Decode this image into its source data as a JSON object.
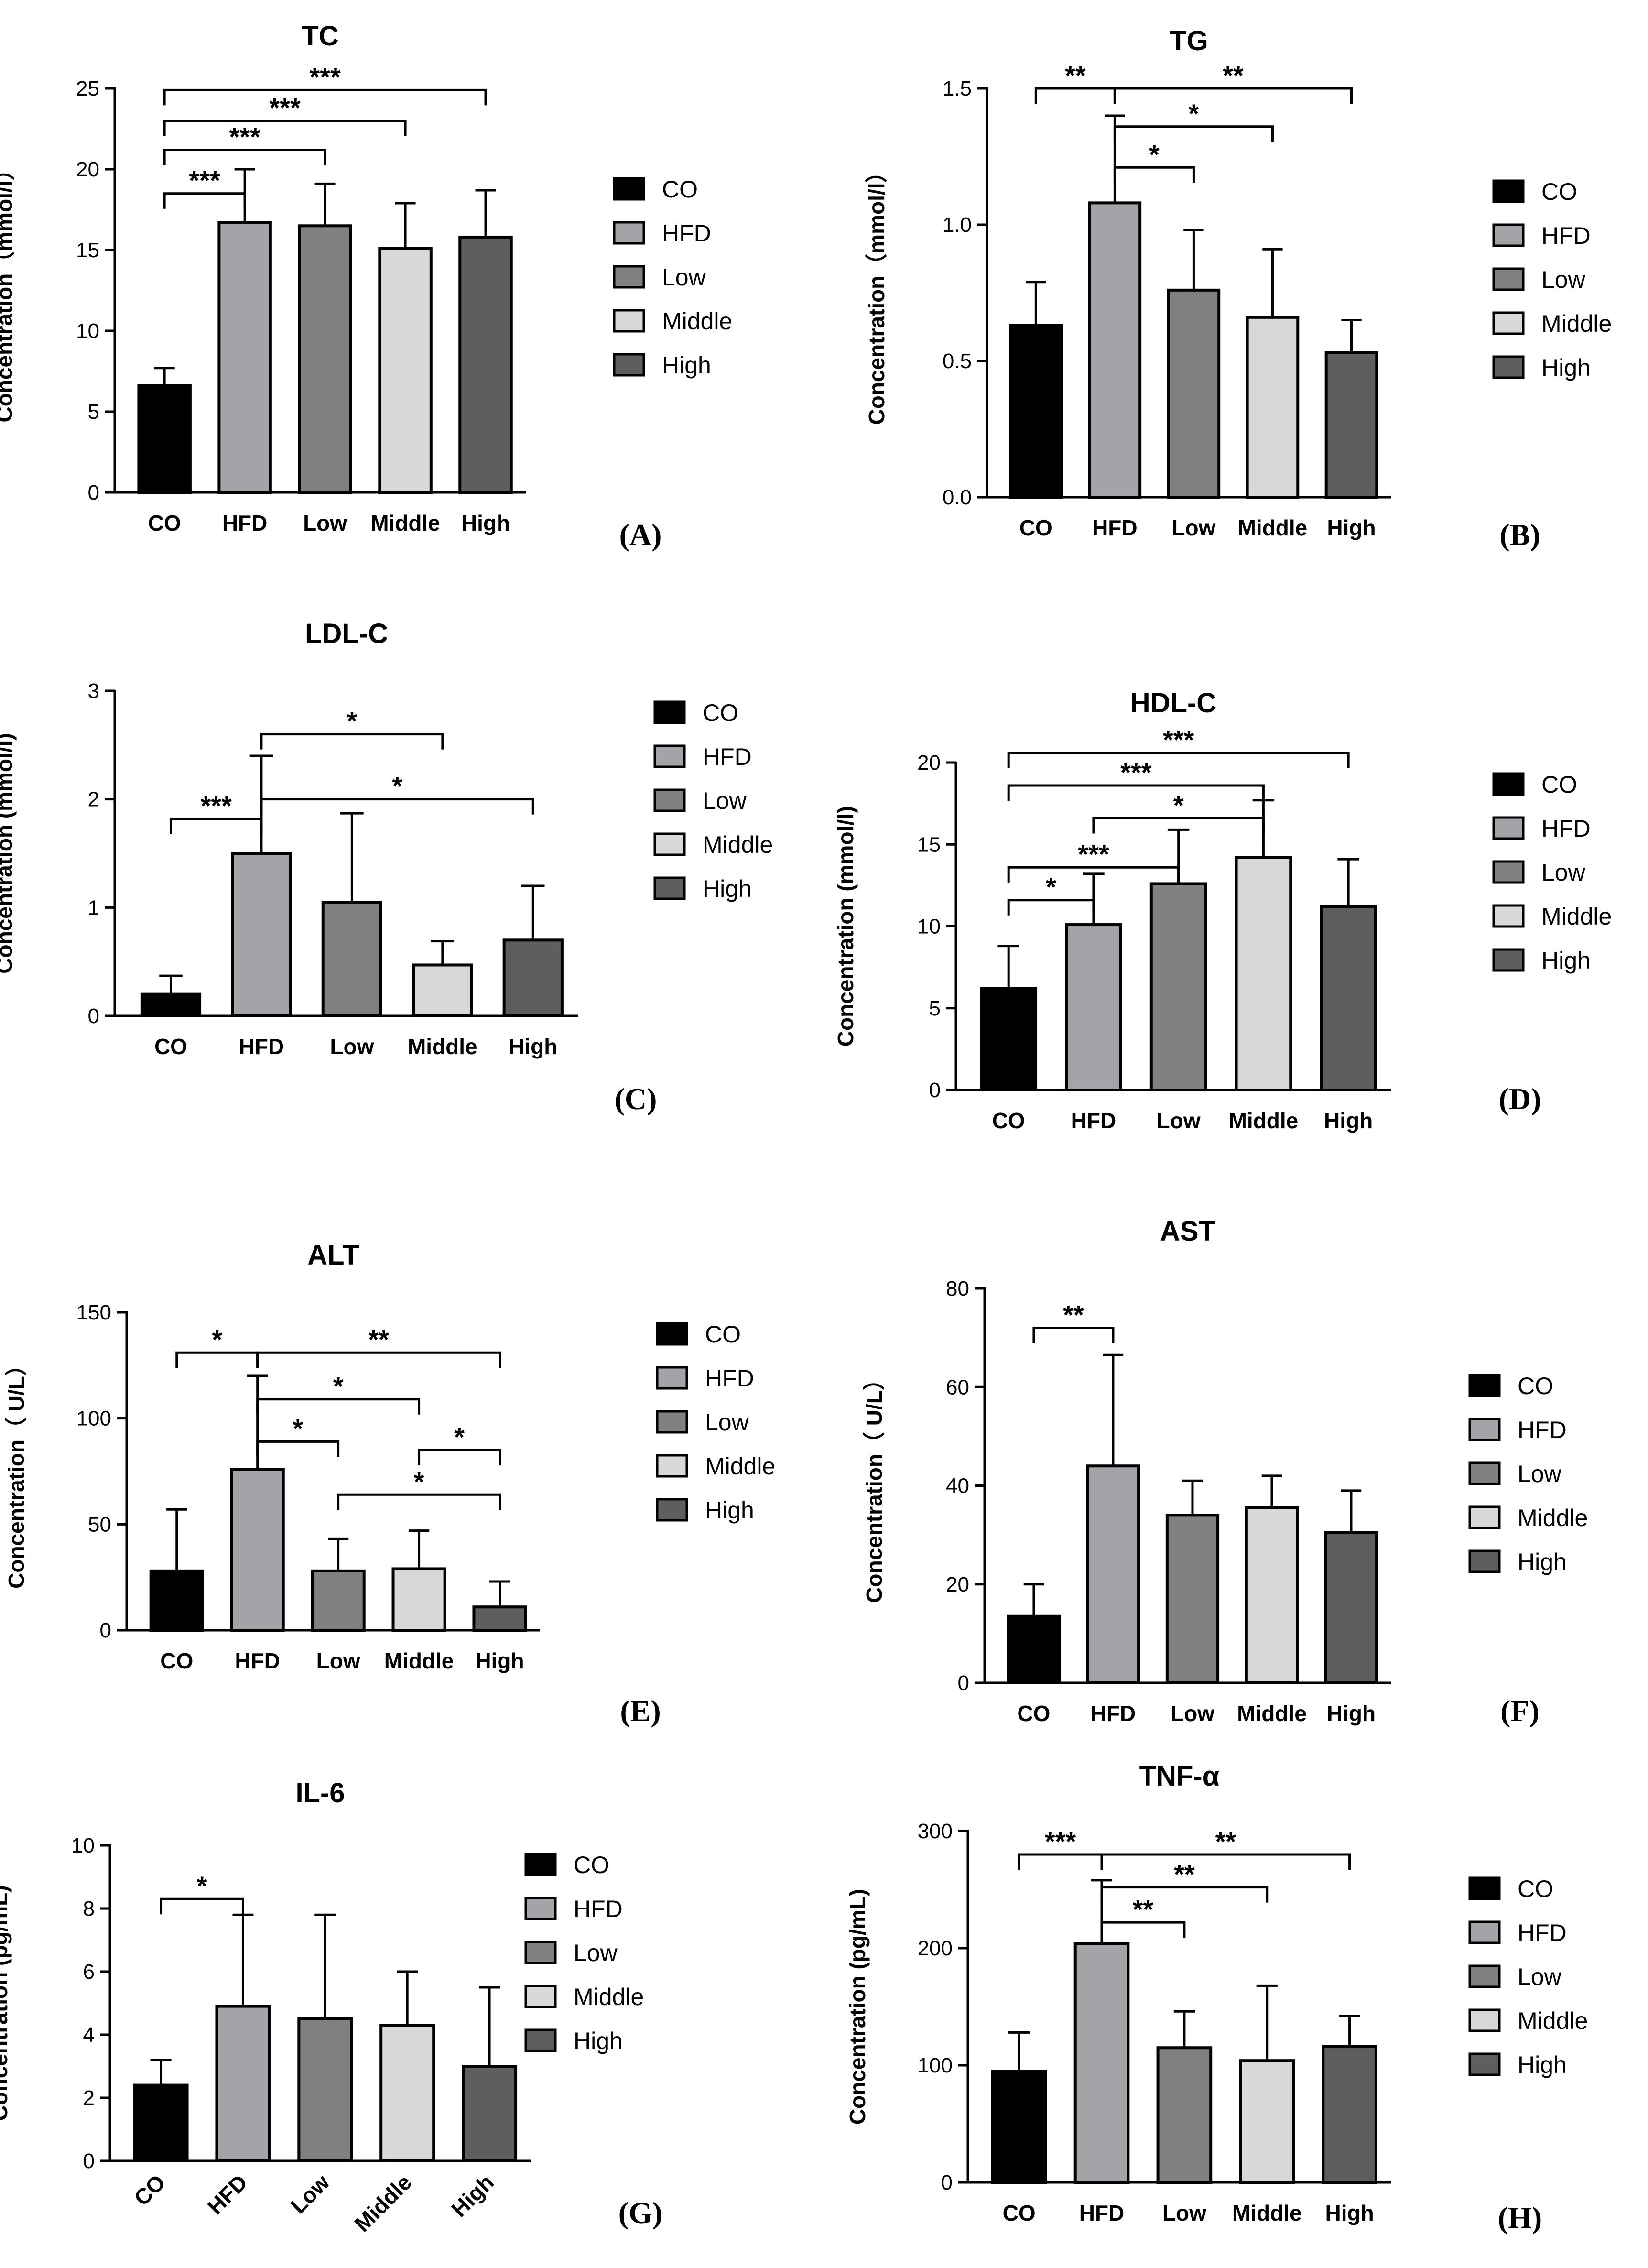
{
  "colors": {
    "CO": "#000000",
    "HFD": "#a3a3a8",
    "Low": "#808080",
    "Middle": "#d8d8d8",
    "High": "#5e5e5e"
  },
  "chart_data": [
    {
      "type": "bar",
      "panel_label": "(A)",
      "title": "TC",
      "ylabel": "Concentration（mmol/l）",
      "xlabel": "",
      "categories": [
        "CO",
        "HFD",
        "Low",
        "Middle",
        "High"
      ],
      "values": [
        6.6,
        16.7,
        16.5,
        15.1,
        15.8
      ],
      "errors": [
        1.1,
        3.3,
        2.6,
        2.8,
        2.9
      ],
      "ylim": [
        0,
        25
      ],
      "yticks": [
        0,
        5,
        10,
        15,
        20,
        25
      ],
      "tick_labels": [
        "0",
        "5",
        "10",
        "15",
        "20",
        "25"
      ],
      "rotate_categories": false,
      "legend": [
        "CO",
        "HFD",
        "Low",
        "Middle",
        "High"
      ],
      "significance": [
        {
          "from": 0,
          "to": 1,
          "label": "***",
          "y": 18.5
        },
        {
          "from": 0,
          "to": 2,
          "label": "***",
          "y": 21.2
        },
        {
          "from": 0,
          "to": 3,
          "label": "***",
          "y": 23.0
        },
        {
          "from": 0,
          "to": 4,
          "label": "***",
          "y": 24.9
        }
      ]
    },
    {
      "type": "bar",
      "panel_label": "(B)",
      "title": "TG",
      "ylabel": "Concentration（mmol/l）",
      "xlabel": "",
      "categories": [
        "CO",
        "HFD",
        "Low",
        "Middle",
        "High"
      ],
      "values": [
        0.63,
        1.08,
        0.76,
        0.66,
        0.53
      ],
      "errors": [
        0.16,
        0.32,
        0.22,
        0.25,
        0.12
      ],
      "ylim": [
        0,
        1.5
      ],
      "yticks": [
        0,
        0.5,
        1.0,
        1.5
      ],
      "tick_labels": [
        "0.0",
        "0.5",
        "1.0",
        "1.5"
      ],
      "rotate_categories": false,
      "legend": [
        "CO",
        "HFD",
        "Low",
        "Middle",
        "High"
      ],
      "significance": [
        {
          "from": 0,
          "to": 1,
          "label": "**",
          "y": 1.5
        },
        {
          "from": 1,
          "to": 2,
          "label": "*",
          "y": 1.21
        },
        {
          "from": 1,
          "to": 3,
          "label": "*",
          "y": 1.36
        },
        {
          "from": 1,
          "to": 4,
          "label": "**",
          "y": 1.5
        }
      ]
    },
    {
      "type": "bar",
      "panel_label": "(C)",
      "title": "LDL-C",
      "ylabel": "Concentration (mmol/l)",
      "xlabel": "",
      "categories": [
        "CO",
        "HFD",
        "Low",
        "Middle",
        "High"
      ],
      "values": [
        0.2,
        1.5,
        1.05,
        0.47,
        0.7
      ],
      "errors": [
        0.17,
        0.9,
        0.82,
        0.22,
        0.5
      ],
      "ylim": [
        0,
        3
      ],
      "yticks": [
        0,
        1,
        2,
        3
      ],
      "tick_labels": [
        "0",
        "1",
        "2",
        "3"
      ],
      "rotate_categories": false,
      "legend": [
        "CO",
        "HFD",
        "Low",
        "Middle",
        "High"
      ],
      "significance": [
        {
          "from": 0,
          "to": 1,
          "label": "***",
          "y": 1.82
        },
        {
          "from": 1,
          "to": 3,
          "label": "*",
          "y": 2.6
        },
        {
          "from": 1,
          "to": 4,
          "label": "*",
          "y": 2.0
        }
      ]
    },
    {
      "type": "bar",
      "panel_label": "(D)",
      "title": "HDL-C",
      "ylabel": "Concentration (mmol/l)",
      "xlabel": "",
      "categories": [
        "CO",
        "HFD",
        "Low",
        "Middle",
        "High"
      ],
      "values": [
        6.2,
        10.1,
        12.6,
        14.2,
        11.2
      ],
      "errors": [
        2.6,
        3.1,
        3.3,
        3.5,
        2.9
      ],
      "ylim": [
        0,
        20
      ],
      "yticks": [
        0,
        5,
        10,
        15,
        20
      ],
      "tick_labels": [
        "0",
        "5",
        "10",
        "15",
        "20"
      ],
      "rotate_categories": false,
      "legend": [
        "CO",
        "HFD",
        "Low",
        "Middle",
        "High"
      ],
      "significance": [
        {
          "from": 0,
          "to": 1,
          "label": "*",
          "y": 11.6
        },
        {
          "from": 0,
          "to": 2,
          "label": "***",
          "y": 13.6
        },
        {
          "from": 1,
          "to": 3,
          "label": "*",
          "y": 16.6
        },
        {
          "from": 0,
          "to": 3,
          "label": "***",
          "y": 18.6
        },
        {
          "from": 0,
          "to": 4,
          "label": "***",
          "y": 20.6
        }
      ]
    },
    {
      "type": "bar",
      "panel_label": "(E)",
      "title": "ALT",
      "ylabel": "Concentration（ U/L）",
      "xlabel": "",
      "categories": [
        "CO",
        "HFD",
        "Low",
        "Middle",
        "High"
      ],
      "values": [
        28,
        76,
        28,
        29,
        11
      ],
      "errors": [
        29,
        44,
        15,
        18,
        12
      ],
      "ylim": [
        0,
        150
      ],
      "yticks": [
        0,
        50,
        100,
        150
      ],
      "tick_labels": [
        "0",
        "50",
        "100",
        "150"
      ],
      "rotate_categories": false,
      "legend": [
        "CO",
        "HFD",
        "Low",
        "Middle",
        "High"
      ],
      "significance": [
        {
          "from": 0,
          "to": 1,
          "label": "*",
          "y": 131
        },
        {
          "from": 1,
          "to": 4,
          "label": "**",
          "y": 131
        },
        {
          "from": 1,
          "to": 3,
          "label": "*",
          "y": 109
        },
        {
          "from": 1,
          "to": 2,
          "label": "*",
          "y": 89
        },
        {
          "from": 3,
          "to": 4,
          "label": "*",
          "y": 85
        },
        {
          "from": 2,
          "to": 4,
          "label": "*",
          "y": 64
        }
      ]
    },
    {
      "type": "bar",
      "panel_label": "(F)",
      "title": "AST",
      "ylabel": "Concentration（ U/L）",
      "xlabel": "",
      "categories": [
        "CO",
        "HFD",
        "Low",
        "Middle",
        "High"
      ],
      "values": [
        13.5,
        44,
        34,
        35.5,
        30.5
      ],
      "errors": [
        6.5,
        22.5,
        7,
        6.5,
        8.5
      ],
      "ylim": [
        0,
        80
      ],
      "yticks": [
        0,
        20,
        40,
        60,
        80
      ],
      "tick_labels": [
        "0",
        "20",
        "40",
        "60",
        "80"
      ],
      "rotate_categories": false,
      "legend": [
        "CO",
        "HFD",
        "Low",
        "Middle",
        "High"
      ],
      "significance": [
        {
          "from": 0,
          "to": 1,
          "label": "**",
          "y": 72
        }
      ]
    },
    {
      "type": "bar",
      "panel_label": "(G)",
      "title": "IL-6",
      "ylabel": "Concentration (pg/mL)",
      "xlabel": "",
      "categories": [
        "CO",
        "HFD",
        "Low",
        "Middle",
        "High"
      ],
      "values": [
        2.4,
        4.9,
        4.5,
        4.3,
        3.0
      ],
      "errors": [
        0.8,
        2.9,
        3.3,
        1.7,
        2.5
      ],
      "ylim": [
        0,
        10
      ],
      "yticks": [
        0,
        2,
        4,
        6,
        8,
        10
      ],
      "tick_labels": [
        "0",
        "2",
        "4",
        "6",
        "8",
        "10"
      ],
      "rotate_categories": true,
      "legend": [
        "CO",
        "HFD",
        "Low",
        "Middle",
        "High"
      ],
      "significance": [
        {
          "from": 0,
          "to": 1,
          "label": "*",
          "y": 8.3
        }
      ]
    },
    {
      "type": "bar",
      "panel_label": "(H)",
      "title": "TNF-α",
      "ylabel": "Concentration (pg/mL)",
      "xlabel": "",
      "categories": [
        "CO",
        "HFD",
        "Low",
        "Middle",
        "High"
      ],
      "values": [
        95,
        204,
        115,
        104,
        116
      ],
      "errors": [
        33,
        54,
        31,
        64,
        26
      ],
      "ylim": [
        0,
        300
      ],
      "yticks": [
        0,
        100,
        200,
        300
      ],
      "tick_labels": [
        "0",
        "100",
        "200",
        "300"
      ],
      "rotate_categories": false,
      "legend": [
        "CO",
        "HFD",
        "Low",
        "Middle",
        "High"
      ],
      "significance": [
        {
          "from": 0,
          "to": 1,
          "label": "***",
          "y": 280
        },
        {
          "from": 1,
          "to": 4,
          "label": "**",
          "y": 280
        },
        {
          "from": 1,
          "to": 3,
          "label": "**",
          "y": 252
        },
        {
          "from": 1,
          "to": 2,
          "label": "**",
          "y": 222
        }
      ]
    }
  ]
}
